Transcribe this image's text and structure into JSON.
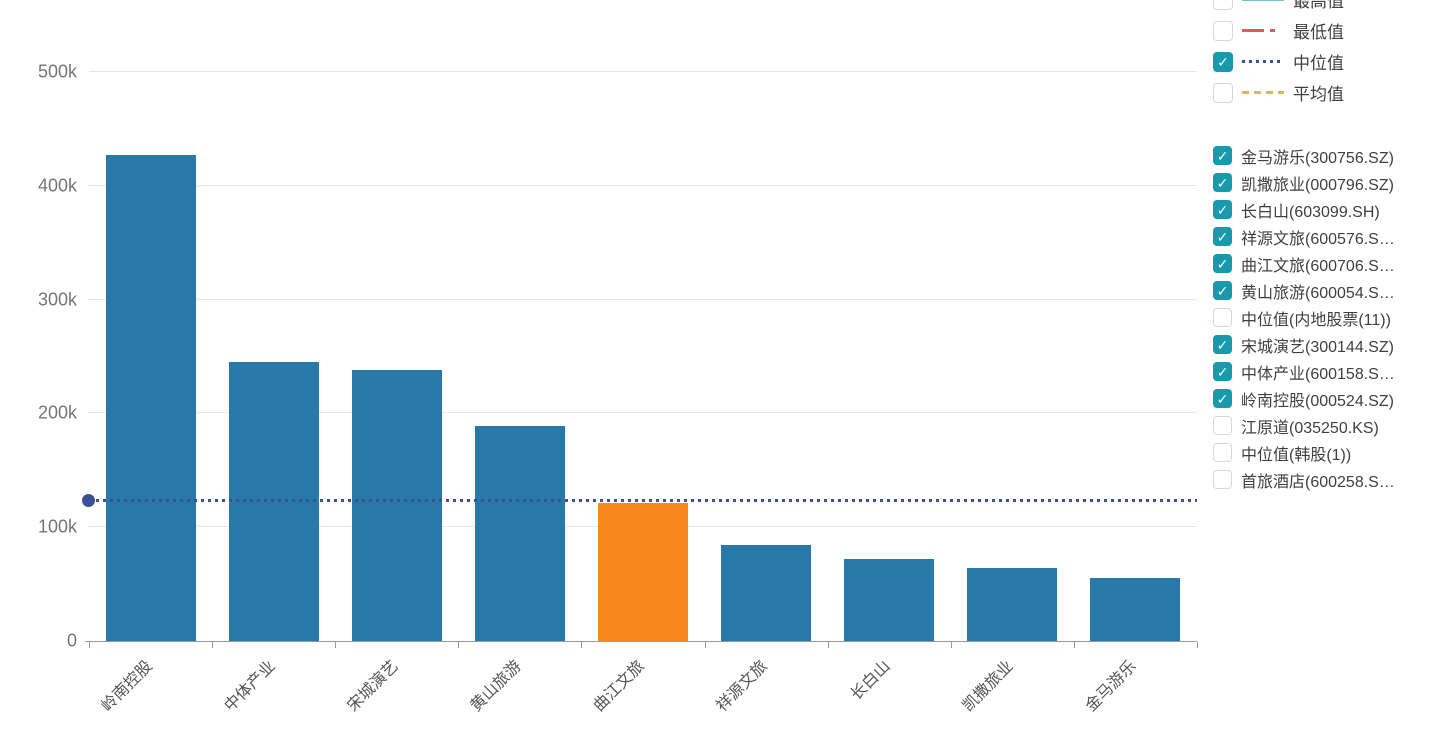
{
  "chart_data": {
    "type": "bar",
    "categories": [
      "岭南控股",
      "中体产业",
      "宋城演艺",
      "黄山旅游",
      "曲江文旅",
      "祥源文旅",
      "长白山",
      "凯撒旅业",
      "金马游乐"
    ],
    "values": [
      427000,
      245000,
      238000,
      189000,
      121000,
      84000,
      72000,
      64000,
      55000
    ],
    "highlight_index": 4,
    "title": "",
    "xlabel": "",
    "ylabel": "",
    "ylim": [
      0,
      500000
    ],
    "yticks": [
      {
        "value": 0,
        "label": "0"
      },
      {
        "value": 100000,
        "label": "100k"
      },
      {
        "value": 200000,
        "label": "200k"
      },
      {
        "value": 300000,
        "label": "300k"
      },
      {
        "value": 400000,
        "label": "400k"
      },
      {
        "value": 500000,
        "label": "500k"
      }
    ],
    "grid": true,
    "legend_position": "right",
    "reference_lines": [
      {
        "name": "中位值",
        "value": 122000,
        "style": "dotted",
        "color": "#3e4e94",
        "left_end_dot": true
      }
    ]
  },
  "colors": {
    "bar": "#2878a8",
    "bar_highlight": "#f7891e",
    "median_line": "#3e4e94",
    "checkbox_checked": "#1899ac",
    "checkbox_check_glyph": "✓",
    "line_highest": "#74c2c6",
    "line_lowest": "#e05a5a",
    "line_median": "#3e4e94",
    "line_average": "#ddba4d",
    "gridline": "#e4e4e4",
    "axis": "#999999",
    "y_label_text": "#757575",
    "x_label_text": "#555555",
    "legend_text": "#404040"
  },
  "legend_lines": [
    {
      "label": "最高值",
      "checked": false,
      "line_style": "solid",
      "color": "#74c2c6"
    },
    {
      "label": "最低值",
      "checked": false,
      "line_style": "dashdot",
      "color": "#e05a5a"
    },
    {
      "label": "中位值",
      "checked": true,
      "line_style": "dotted",
      "color": "#3e4e94"
    },
    {
      "label": "平均值",
      "checked": false,
      "line_style": "dashed",
      "color": "#ddba4d"
    }
  ],
  "legend_series": [
    {
      "label": "金马游乐(300756.SZ)",
      "checked": true
    },
    {
      "label": "凯撒旅业(000796.SZ)",
      "checked": true
    },
    {
      "label": "长白山(603099.SH)",
      "checked": true
    },
    {
      "label": "祥源文旅(600576.S…",
      "checked": true
    },
    {
      "label": "曲江文旅(600706.S…",
      "checked": true
    },
    {
      "label": "黄山旅游(600054.S…",
      "checked": true
    },
    {
      "label": "中位值(内地股票(11))",
      "checked": false
    },
    {
      "label": "宋城演艺(300144.SZ)",
      "checked": true
    },
    {
      "label": "中体产业(600158.S…",
      "checked": true
    },
    {
      "label": "岭南控股(000524.SZ)",
      "checked": true
    },
    {
      "label": "江原道(035250.KS)",
      "checked": false
    },
    {
      "label": "中位值(韩股(1))",
      "checked": false
    },
    {
      "label": "首旅酒店(600258.S…",
      "checked": false
    }
  ]
}
